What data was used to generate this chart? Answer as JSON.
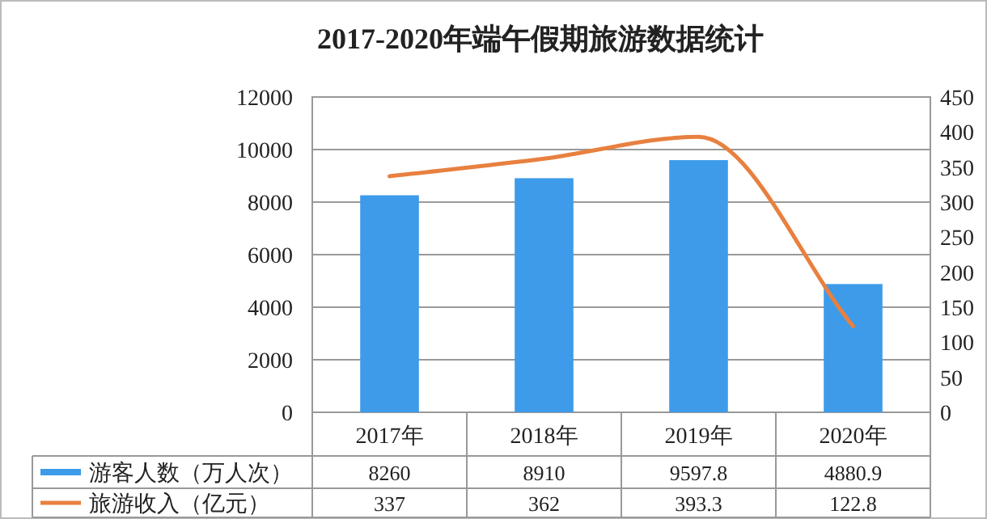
{
  "chart_data": {
    "type": "bar",
    "title": "2017-2020年端午假期旅游数据统计",
    "categories": [
      "2017年",
      "2018年",
      "2019年",
      "2020年"
    ],
    "series": [
      {
        "name": "游客人数（万人次）",
        "color": "#3d9be9",
        "values": [
          8260,
          8910,
          9597.8,
          4880.9
        ]
      },
      {
        "name": "旅游收入（亿元）",
        "type": "line",
        "axis": "y2",
        "color": "#e8803f",
        "values": [
          337,
          362,
          393.3,
          122.8
        ]
      }
    ],
    "ylim": [
      0,
      12000
    ],
    "yticks": [
      0,
      2000,
      4000,
      6000,
      8000,
      10000,
      12000
    ],
    "y2lim": [
      0,
      450
    ],
    "y2ticks": [
      0,
      50,
      100,
      150,
      200,
      250,
      300,
      350,
      400,
      450
    ],
    "grid": "y",
    "legend": "bottom",
    "data_labels": true
  }
}
